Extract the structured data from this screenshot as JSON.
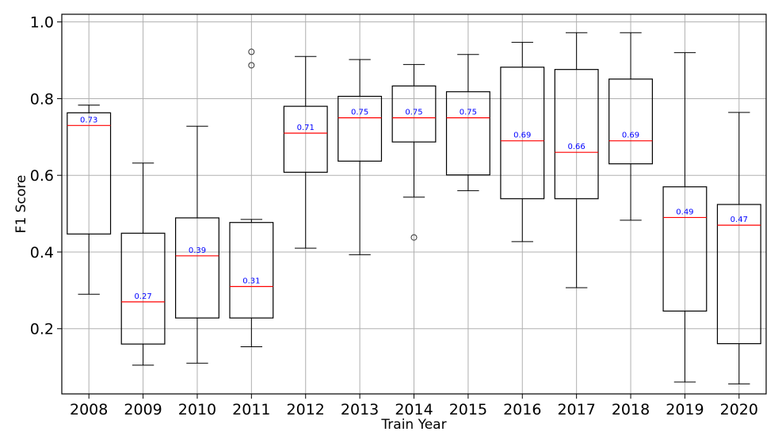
{
  "chart_data": {
    "type": "box",
    "title": "",
    "xlabel": "Train Year",
    "ylabel": "F1 Score",
    "ylim": [
      0.03,
      1.02
    ],
    "yticks": [
      0.2,
      0.4,
      0.6,
      0.8,
      1.0
    ],
    "ytick_labels": [
      "0.2",
      "0.4",
      "0.6",
      "0.8",
      "1.0"
    ],
    "grid": true,
    "colors": {
      "box": "#000000",
      "median": "#ff0000",
      "median_label": "#0000ff",
      "grid": "#b0b0b0"
    },
    "categories": [
      "2008",
      "2009",
      "2010",
      "2011",
      "2012",
      "2013",
      "2014",
      "2015",
      "2016",
      "2017",
      "2018",
      "2019",
      "2020"
    ],
    "boxes": [
      {
        "whislo": 0.29,
        "q1": 0.447,
        "median": 0.73,
        "q3": 0.763,
        "whishi": 0.783,
        "fliers": [],
        "label": "0.73"
      },
      {
        "whislo": 0.105,
        "q1": 0.16,
        "median": 0.27,
        "q3": 0.449,
        "whishi": 0.632,
        "fliers": [],
        "label": "0.27"
      },
      {
        "whislo": 0.11,
        "q1": 0.228,
        "median": 0.39,
        "q3": 0.489,
        "whishi": 0.728,
        "fliers": [],
        "label": "0.39"
      },
      {
        "whislo": 0.153,
        "q1": 0.228,
        "median": 0.31,
        "q3": 0.477,
        "whishi": 0.485,
        "fliers": [
          0.887,
          0.922
        ],
        "label": "0.31"
      },
      {
        "whislo": 0.41,
        "q1": 0.608,
        "median": 0.71,
        "q3": 0.78,
        "whishi": 0.91,
        "fliers": [],
        "label": "0.71"
      },
      {
        "whislo": 0.393,
        "q1": 0.637,
        "median": 0.75,
        "q3": 0.806,
        "whishi": 0.902,
        "fliers": [],
        "label": "0.75"
      },
      {
        "whislo": 0.543,
        "q1": 0.687,
        "median": 0.75,
        "q3": 0.833,
        "whishi": 0.889,
        "fliers": [
          0.438
        ],
        "label": "0.75"
      },
      {
        "whislo": 0.56,
        "q1": 0.601,
        "median": 0.75,
        "q3": 0.818,
        "whishi": 0.915,
        "fliers": [],
        "label": "0.75"
      },
      {
        "whislo": 0.427,
        "q1": 0.539,
        "median": 0.69,
        "q3": 0.882,
        "whishi": 0.947,
        "fliers": [],
        "label": "0.69"
      },
      {
        "whislo": 0.307,
        "q1": 0.539,
        "median": 0.66,
        "q3": 0.876,
        "whishi": 0.972,
        "fliers": [],
        "label": "0.66"
      },
      {
        "whislo": 0.483,
        "q1": 0.63,
        "median": 0.69,
        "q3": 0.851,
        "whishi": 0.972,
        "fliers": [],
        "label": "0.69"
      },
      {
        "whislo": 0.061,
        "q1": 0.246,
        "median": 0.49,
        "q3": 0.57,
        "whishi": 0.92,
        "fliers": [],
        "label": "0.49"
      },
      {
        "whislo": 0.056,
        "q1": 0.161,
        "median": 0.47,
        "q3": 0.524,
        "whishi": 0.764,
        "fliers": [],
        "label": "0.47"
      }
    ]
  }
}
